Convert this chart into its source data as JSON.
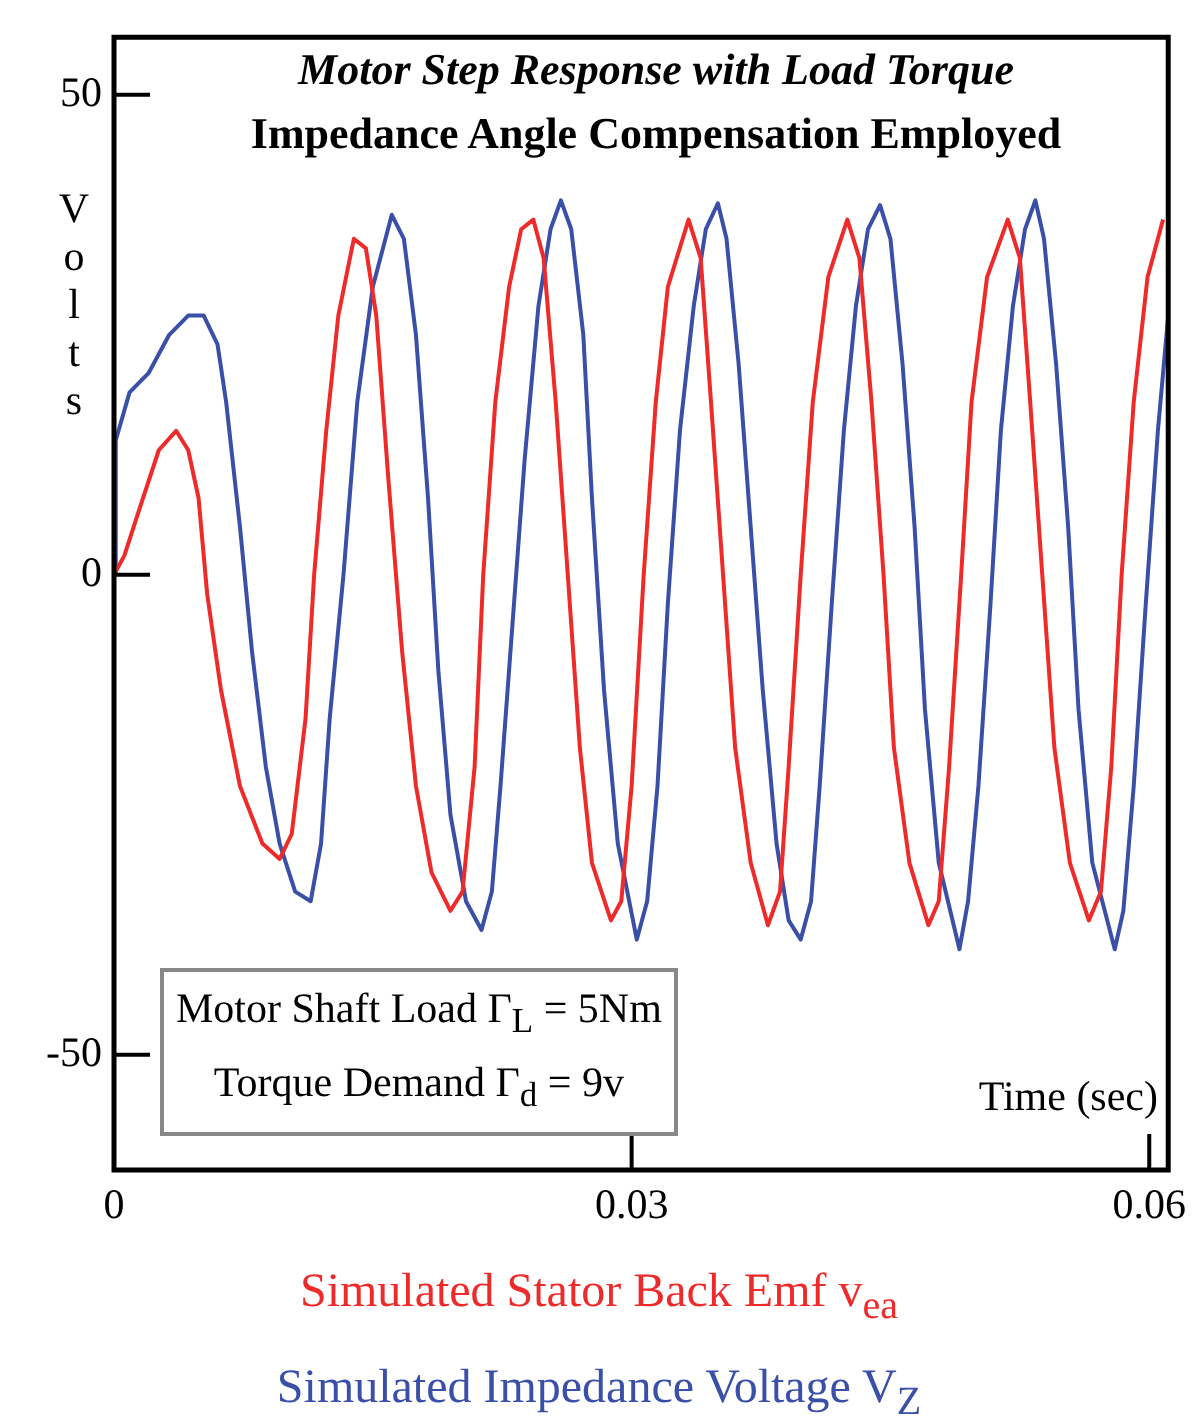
{
  "chart_data": {
    "type": "line",
    "title": "Motor Step Response with Load Torque",
    "subtitle": "Impedance Angle Compensation Employed",
    "xlabel": "Time (sec)",
    "ylabel": "Volts",
    "xlim": [
      0,
      0.0611
    ],
    "xticks": [
      0,
      0.03,
      0.06
    ],
    "ylim": [
      -62,
      56
    ],
    "yticks": [
      -50,
      0,
      50
    ],
    "grid": false,
    "legend": "bottom",
    "marker": "none",
    "line_style": "solid",
    "annotations": [
      "Motor Shaft Load Γ$_{L}$ = 5Nm",
      "Torque Demand Γ$_{d}$ = 9v"
    ],
    "series": [
      {
        "name": "Simulated Stator Back Emf v$_{ea}$",
        "color": "#ee2a2a",
        "x": [
          0,
          0.0006,
          0.0015,
          0.0026,
          0.0036,
          0.0043,
          0.0049,
          0.0054,
          0.0062,
          0.0073,
          0.0086,
          0.0096,
          0.0103,
          0.0111,
          0.0116,
          0.0123,
          0.013,
          0.0139,
          0.0146,
          0.0152,
          0.0159,
          0.0167,
          0.0175,
          0.0184,
          0.0195,
          0.0202,
          0.0209,
          0.0214,
          0.0221,
          0.0229,
          0.0236,
          0.0243,
          0.0249,
          0.0256,
          0.0263,
          0.027,
          0.0277,
          0.0288,
          0.0294,
          0.03,
          0.0307,
          0.0314,
          0.0321,
          0.0333,
          0.034,
          0.0346,
          0.0353,
          0.036,
          0.0369,
          0.0379,
          0.0386,
          0.0391,
          0.0398,
          0.0405,
          0.0414,
          0.0425,
          0.0432,
          0.0439,
          0.0446,
          0.0452,
          0.0461,
          0.0472,
          0.0478,
          0.0484,
          0.0491,
          0.0497,
          0.0506,
          0.0518,
          0.0525,
          0.0531,
          0.0538,
          0.0545,
          0.0554,
          0.0565,
          0.0572,
          0.0578,
          0.0584,
          0.0591,
          0.0599,
          0.0608
        ],
        "values": [
          0,
          2,
          7,
          13,
          15,
          13,
          8,
          -2,
          -12,
          -22,
          -28,
          -29.6,
          -27,
          -15,
          0,
          15,
          27,
          35,
          34,
          27,
          10,
          -8,
          -22,
          -31,
          -35,
          -33,
          -20,
          0,
          18,
          30,
          36,
          37,
          33,
          18,
          0,
          -18,
          -30,
          -36,
          -34,
          -22,
          0,
          18,
          30,
          37,
          33,
          18,
          0,
          -18,
          -30,
          -36.5,
          -33,
          -20,
          0,
          18,
          31,
          37,
          33,
          18,
          0,
          -18,
          -30,
          -36.5,
          -34,
          -20,
          0,
          18,
          31,
          37,
          33,
          18,
          0,
          -18,
          -30,
          -36,
          -33,
          -20,
          0,
          18,
          31,
          37
        ]
      },
      {
        "name": "Simulated Impedance Voltage V$_{Z}$",
        "color": "#3a4fa8",
        "x": [
          0,
          0.0001,
          0.0009,
          0.002,
          0.0032,
          0.0043,
          0.0052,
          0.006,
          0.0065,
          0.0073,
          0.008,
          0.0088,
          0.0096,
          0.0105,
          0.0114,
          0.012,
          0.0125,
          0.0133,
          0.0141,
          0.015,
          0.0161,
          0.0168,
          0.0175,
          0.0182,
          0.0188,
          0.0195,
          0.0204,
          0.0213,
          0.0219,
          0.0224,
          0.0231,
          0.0238,
          0.0246,
          0.0253,
          0.0259,
          0.0265,
          0.0272,
          0.0277,
          0.0284,
          0.0292,
          0.0303,
          0.0309,
          0.0315,
          0.0321,
          0.0328,
          0.0336,
          0.0343,
          0.035,
          0.0355,
          0.0362,
          0.0369,
          0.0376,
          0.0384,
          0.0391,
          0.0398,
          0.0404,
          0.0409,
          0.0416,
          0.0423,
          0.043,
          0.0437,
          0.0444,
          0.045,
          0.0457,
          0.0464,
          0.047,
          0.0478,
          0.049,
          0.0495,
          0.0501,
          0.0508,
          0.0514,
          0.0521,
          0.0528,
          0.0534,
          0.0539,
          0.0546,
          0.0553,
          0.0559,
          0.0567,
          0.058,
          0.0585,
          0.0591,
          0.0598,
          0.0605,
          0.0611
        ],
        "values": [
          0,
          14,
          19,
          21,
          25,
          27,
          27,
          24,
          18,
          5,
          -8,
          -20,
          -28,
          -33,
          -34,
          -28,
          -15,
          0,
          18,
          30,
          37.5,
          35,
          25,
          8,
          -10,
          -25,
          -34,
          -37,
          -33,
          -22,
          -5,
          12,
          28,
          36,
          39,
          36,
          25,
          8,
          -12,
          -28,
          -38,
          -34,
          -22,
          -3,
          15,
          28,
          36,
          38.7,
          35,
          22,
          5,
          -12,
          -28,
          -36,
          -38,
          -34,
          -22,
          -3,
          15,
          28,
          36,
          38.5,
          35,
          22,
          5,
          -14,
          -30,
          -39,
          -34,
          -22,
          -3,
          15,
          28,
          36,
          39,
          35,
          22,
          5,
          -14,
          -30,
          -39,
          -35,
          -22,
          -3,
          15,
          27
        ]
      }
    ]
  }
}
